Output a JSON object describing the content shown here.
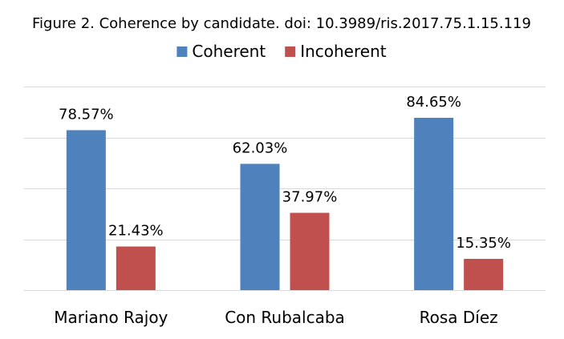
{
  "chart_data": {
    "type": "bar",
    "title": "Figure 2. Coherence by candidate. doi: 10.3989/ris.2017.75.1.15.119",
    "xlabel": "",
    "ylabel": "",
    "categories": [
      "Mariano Rajoy",
      "Con Rubalcaba",
      "Rosa Díez"
    ],
    "series": [
      {
        "name": "Coherent",
        "color": "#4f81bd",
        "values": [
          78.57,
          62.03,
          84.65
        ],
        "labels": [
          "78.57%",
          "62.03%",
          "84.65%"
        ]
      },
      {
        "name": "Incoherent",
        "color": "#c0504d",
        "values": [
          21.43,
          37.97,
          15.35
        ],
        "labels": [
          "21.43%",
          "37.97%",
          "15.35%"
        ]
      }
    ],
    "ylim": [
      0,
      100
    ],
    "grid": true,
    "legend_position": "top"
  }
}
